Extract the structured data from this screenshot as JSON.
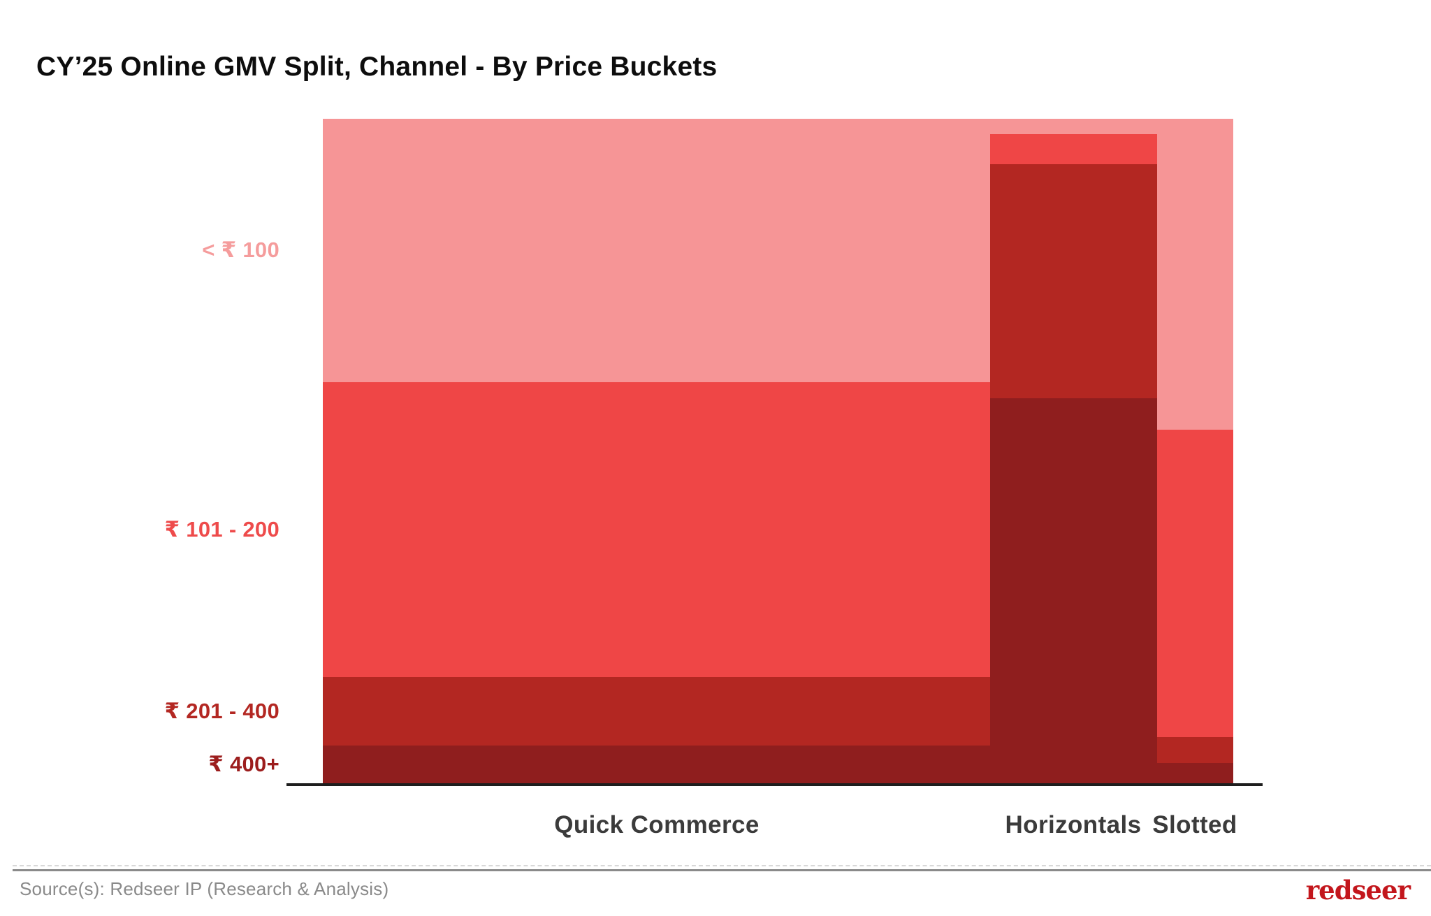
{
  "title": "CY’25 Online GMV Split, Channel - By Price Buckets",
  "footer": {
    "source": "Source(s): Redseer IP (Research & Analysis)",
    "logo_text": "redseer",
    "logo_color": "#C3161C"
  },
  "colors": {
    "title_text": "#0D0D0D",
    "category_label_text": "#3B3B3B",
    "axis_line": "#1E1E1E",
    "source_text": "#8A8A8A"
  },
  "chart_data": {
    "type": "marimekko",
    "title": "CY’25 Online GMV Split, Channel - By Price Buckets",
    "xlabel": "",
    "ylabel": "",
    "legend_position": "left-row-labels",
    "grid": false,
    "price_buckets": [
      "< ₹ 100",
      "₹ 101 - 200",
      "₹ 201 - 400",
      "₹ 400+"
    ],
    "price_buckets_plain": [
      "under-100",
      "101-200",
      "201-400",
      "400-plus"
    ],
    "bucket_colors": [
      "#F69596",
      "#EF4646",
      "#B32722",
      "#8F1E1E"
    ],
    "bucket_label_colors": [
      "#F59C9C",
      "#EE4B4B",
      "#B32722",
      "#9C1D1D"
    ],
    "categories": [
      "Quick Commerce",
      "Horizontals",
      "Slotted"
    ],
    "columns": [
      {
        "name": "Quick Commerce",
        "slug": "quick-commerce",
        "width_pct": 73.3,
        "values_pct": [
          39.6,
          44.3,
          10.3,
          5.8
        ]
      },
      {
        "name": "Horizontals",
        "slug": "horizontals",
        "width_pct": 18.3,
        "values_pct": [
          2.3,
          4.5,
          35.2,
          58.0
        ]
      },
      {
        "name": "Slotted",
        "slug": "slotted",
        "width_pct": 8.4,
        "values_pct": [
          46.7,
          46.3,
          3.9,
          3.1
        ]
      }
    ]
  }
}
